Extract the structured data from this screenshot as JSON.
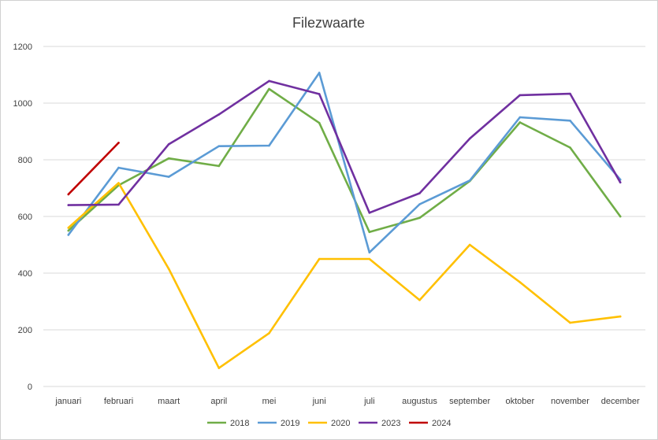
{
  "chart_data": {
    "type": "line",
    "title": "Filezwaarte",
    "xlabel": "",
    "ylabel": "",
    "ylim": [
      0,
      1200
    ],
    "yticks": [
      0,
      200,
      400,
      600,
      800,
      1000,
      1200
    ],
    "grid": true,
    "legend": "bottom",
    "categories": [
      "januari",
      "februari",
      "maart",
      "april",
      "mei",
      "juni",
      "juli",
      "augustus",
      "september",
      "oktober",
      "november",
      "december"
    ],
    "series": [
      {
        "name": "2018",
        "color": "#70AD47",
        "values": [
          550,
          710,
          805,
          778,
          1050,
          930,
          545,
          595,
          725,
          932,
          843,
          600
        ]
      },
      {
        "name": "2019",
        "color": "#5B9BD5",
        "values": [
          535,
          772,
          740,
          848,
          850,
          1107,
          473,
          643,
          727,
          950,
          938,
          730
        ]
      },
      {
        "name": "2020",
        "color": "#FFC000",
        "values": [
          560,
          718,
          415,
          65,
          188,
          450,
          450,
          305,
          500,
          368,
          225,
          247
        ]
      },
      {
        "name": "2023",
        "color": "#7030A0",
        "values": [
          640,
          642,
          855,
          960,
          1078,
          1032,
          613,
          682,
          875,
          1028,
          1033,
          720
        ]
      },
      {
        "name": "2024",
        "color": "#C00000",
        "values": [
          678,
          860,
          null,
          null,
          null,
          null,
          null,
          null,
          null,
          null,
          null,
          null
        ]
      }
    ]
  }
}
